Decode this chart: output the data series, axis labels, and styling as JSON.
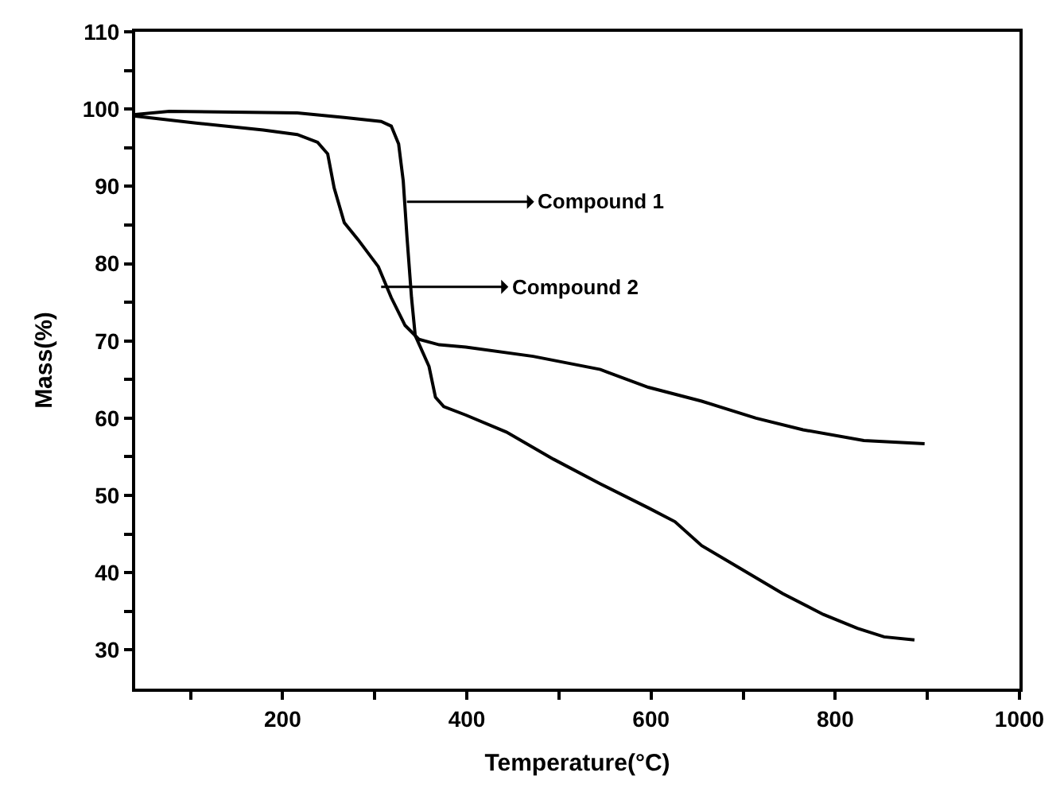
{
  "chart_data": {
    "type": "line",
    "xlabel": "Temperature(°C)",
    "ylabel": "Mass(%)",
    "xlim": [
      40,
      1000
    ],
    "ylim": [
      25,
      110
    ],
    "xticks": [
      {
        "value": 100,
        "label": null
      },
      200,
      {
        "value": 300,
        "label": null
      },
      400,
      {
        "value": 500,
        "label": null
      },
      600,
      {
        "value": 700,
        "label": null
      },
      800,
      {
        "value": 900,
        "label": null
      },
      1000
    ],
    "yticks": [
      30,
      {
        "value": 35,
        "label": null
      },
      40,
      {
        "value": 45,
        "label": null
      },
      50,
      {
        "value": 55,
        "label": null
      },
      60,
      {
        "value": 65,
        "label": null
      },
      70,
      {
        "value": 75,
        "label": null
      },
      80,
      {
        "value": 85,
        "label": null
      },
      90,
      {
        "value": 95,
        "label": null
      },
      100,
      {
        "value": 105,
        "label": null
      },
      110
    ],
    "marker": "none",
    "line_style": "solid",
    "series": [
      {
        "color": "#000000",
        "x": [
          40,
          77,
          216,
          267,
          307,
          318,
          326,
          331,
          335,
          340,
          344,
          359,
          366,
          375,
          399,
          443,
          494,
          545,
          597,
          626,
          655,
          692,
          743,
          787,
          824,
          853,
          886
        ],
        "values": [
          99.3,
          99.7,
          99.5,
          98.9,
          98.4,
          97.8,
          95.5,
          90.7,
          83.6,
          75.6,
          70.7,
          66.7,
          62.7,
          61.5,
          60.4,
          58.2,
          54.7,
          51.5,
          48.4,
          46.6,
          43.5,
          40.9,
          37.3,
          34.6,
          32.8,
          31.7,
          31.3
        ]
      },
      {
        "color": "#000000",
        "x": [
          40,
          106,
          179,
          216,
          238,
          249,
          256,
          267,
          282,
          304,
          318,
          333,
          348,
          370,
          399,
          472,
          545,
          597,
          655,
          714,
          765,
          831,
          897
        ],
        "values": [
          99.1,
          98.2,
          97.3,
          96.7,
          95.7,
          94.2,
          89.8,
          85.3,
          83.1,
          79.6,
          75.6,
          72.0,
          70.2,
          69.5,
          69.2,
          68.0,
          66.3,
          64.0,
          62.2,
          60.0,
          58.5,
          57.1,
          56.7
        ]
      }
    ],
    "annotations": [
      {
        "text": "Compound 1",
        "x": 335,
        "y": 88
      },
      {
        "text": "Compound 2",
        "x": 307,
        "y": 77
      }
    ]
  }
}
